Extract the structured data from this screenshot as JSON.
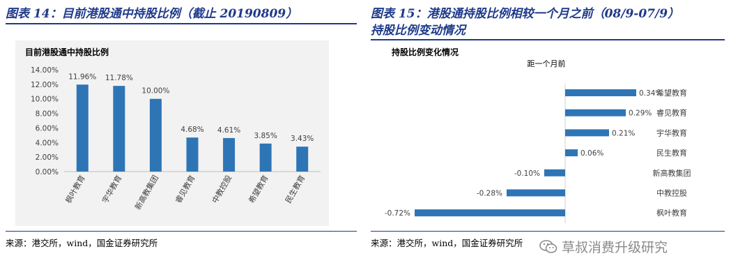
{
  "left": {
    "figure_title": "图表 14：目前港股通中持股比例（截止 20190809）",
    "source": "来源：港交所，wind，国金证券研究所"
  },
  "right": {
    "figure_title_line1": "图表 15：港股通持股比例相较一个月之前（08/9-07/9）",
    "figure_title_line2": "持股比例变动情况",
    "source": "来源：港交所，wind，国金证券研究所"
  },
  "watermark": {
    "text": "草叔消费升级研究",
    "icon": "wechat-icon"
  },
  "chart_data": [
    {
      "type": "bar",
      "title": "目前港股通中持股比例",
      "categories": [
        "枫叶教育",
        "宇华教育",
        "新高教集团",
        "睿见教育",
        "中教控股",
        "希望教育",
        "民生教育"
      ],
      "values": [
        11.96,
        11.78,
        10.0,
        4.68,
        4.61,
        3.85,
        3.43
      ],
      "data_labels": [
        "11.96%",
        "11.78%",
        "10.00%",
        "4.68%",
        "4.61%",
        "3.85%",
        "3.43%"
      ],
      "ylim": [
        0,
        14
      ],
      "yticks": [
        0,
        2,
        4,
        6,
        8,
        10,
        12,
        14
      ],
      "ytick_labels": [
        "0.00%",
        "2.00%",
        "4.00%",
        "6.00%",
        "8.00%",
        "10.00%",
        "12.00%",
        "14.00%"
      ],
      "grid": false,
      "color": "#2e75b6"
    },
    {
      "type": "bar",
      "orientation": "horizontal",
      "title": "持股比例变化情况",
      "subtitle": "距一个月前",
      "categories": [
        "希望教育",
        "睿见教育",
        "宇华教育",
        "民生教育",
        "新高教集团",
        "中教控股",
        "枫叶教育"
      ],
      "values": [
        0.34,
        0.29,
        0.21,
        0.06,
        -0.1,
        -0.28,
        -0.72
      ],
      "data_labels": [
        "0.34%",
        "0.29%",
        "0.21%",
        "0.06%",
        "-0.10%",
        "-0.28%",
        "-0.72%"
      ],
      "xlim": [
        -0.8,
        0.4
      ],
      "grid": false,
      "color": "#2e75b6"
    }
  ]
}
